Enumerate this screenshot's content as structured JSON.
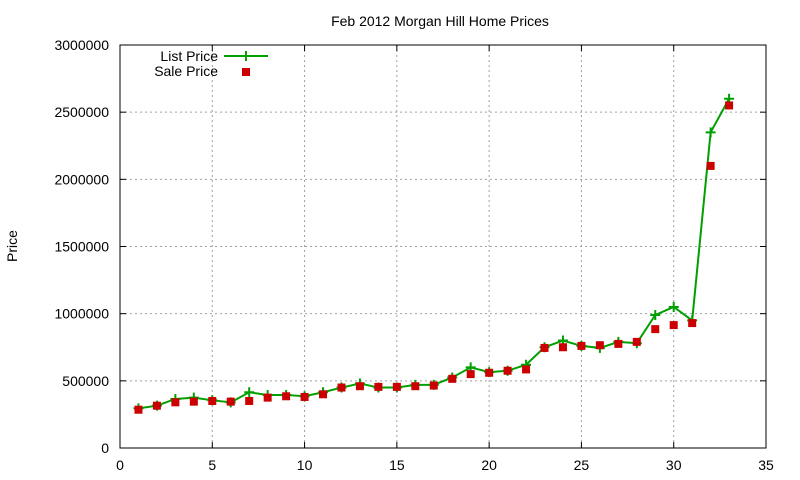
{
  "chart_data": {
    "type": "line",
    "title": "Feb 2012 Morgan Hill Home Prices",
    "xlabel": "",
    "ylabel": "Price",
    "xlim": [
      0,
      35
    ],
    "ylim": [
      0,
      3000000
    ],
    "xticks": [
      0,
      5,
      10,
      15,
      20,
      25,
      30,
      35
    ],
    "yticks": [
      0,
      500000,
      1000000,
      1500000,
      2000000,
      2500000,
      3000000
    ],
    "grid": true,
    "legend_position": "top-left",
    "x": [
      1,
      2,
      3,
      4,
      5,
      6,
      7,
      8,
      9,
      10,
      11,
      12,
      13,
      14,
      15,
      16,
      17,
      18,
      19,
      20,
      21,
      22,
      23,
      24,
      25,
      26,
      27,
      28,
      29,
      30,
      31,
      32,
      33
    ],
    "series": [
      {
        "name": "List Price",
        "style": "linespoints",
        "marker": "plus",
        "color": "#00a000",
        "values": [
          295000,
          315000,
          365000,
          375000,
          355000,
          340000,
          415000,
          395000,
          395000,
          385000,
          415000,
          450000,
          480000,
          450000,
          450000,
          470000,
          470000,
          525000,
          600000,
          565000,
          575000,
          620000,
          750000,
          800000,
          760000,
          745000,
          790000,
          780000,
          990000,
          1050000,
          950000,
          2350000,
          2600000
        ]
      },
      {
        "name": "Sale Price",
        "style": "points",
        "marker": "square",
        "color": "#cc0000",
        "values": [
          285000,
          315000,
          340000,
          345000,
          350000,
          345000,
          350000,
          375000,
          385000,
          380000,
          400000,
          450000,
          460000,
          455000,
          455000,
          460000,
          465000,
          515000,
          550000,
          560000,
          575000,
          585000,
          745000,
          750000,
          760000,
          765000,
          775000,
          790000,
          885000,
          915000,
          930000,
          2100000,
          2550000
        ]
      }
    ]
  }
}
